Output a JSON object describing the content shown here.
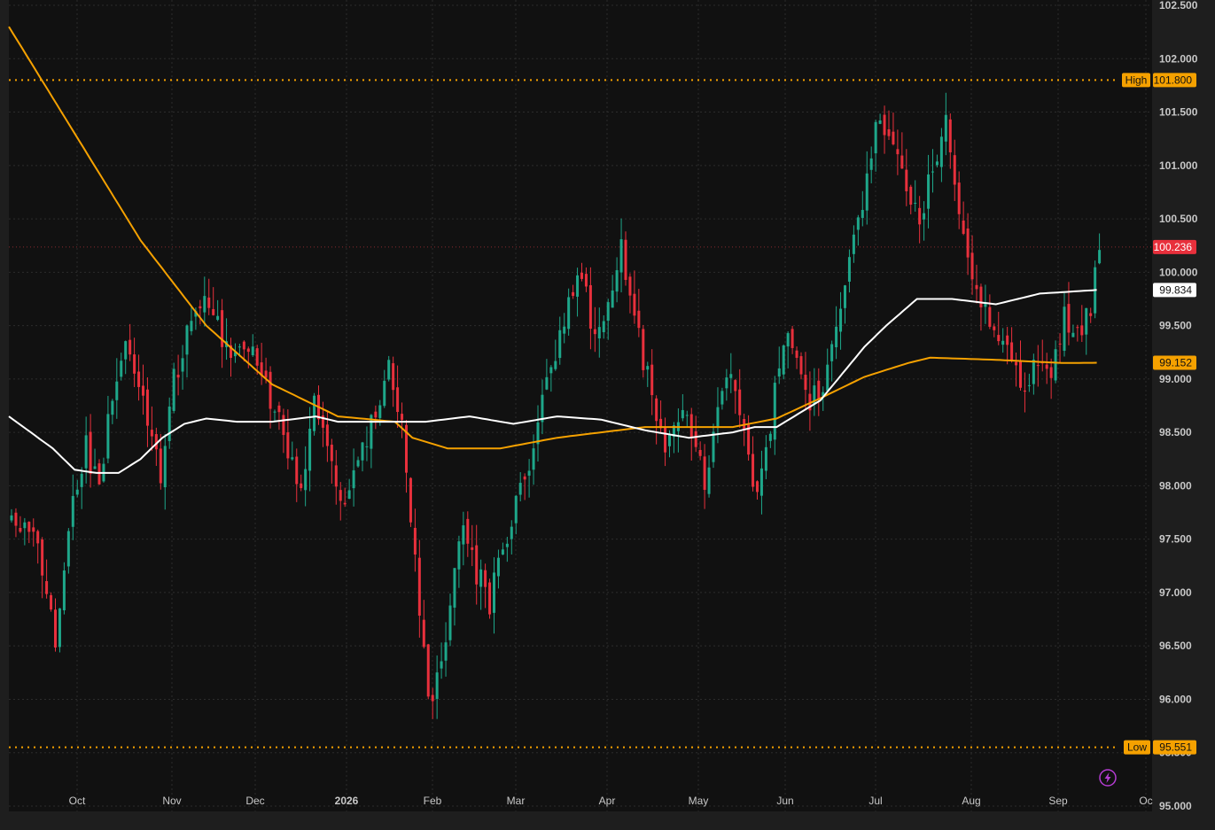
{
  "chart_data": {
    "type": "candlestick",
    "y_axis": {
      "min": 94.95,
      "max": 102.55,
      "ticks": [
        "95.000",
        "95.500",
        "96.000",
        "96.500",
        "97.000",
        "97.500",
        "98.000",
        "98.500",
        "99.000",
        "99.500",
        "100.000",
        "100.500",
        "101.000",
        "101.500",
        "102.000",
        "102.500"
      ]
    },
    "x_axis": {
      "labels": [
        {
          "text": "Oct",
          "bold": false
        },
        {
          "text": "Nov",
          "bold": false
        },
        {
          "text": "Dec",
          "bold": false
        },
        {
          "text": "2026",
          "bold": true
        },
        {
          "text": "Feb",
          "bold": false
        },
        {
          "text": "Mar",
          "bold": false
        },
        {
          "text": "Apr",
          "bold": false
        },
        {
          "text": "May",
          "bold": false
        },
        {
          "text": "Jun",
          "bold": false
        },
        {
          "text": "Jul",
          "bold": false
        },
        {
          "text": "Aug",
          "bold": false
        },
        {
          "text": "Sep",
          "bold": false
        },
        {
          "text": "Oc",
          "bold": false
        }
      ]
    },
    "high": {
      "label": "High",
      "value": "101.800",
      "price": 101.8
    },
    "low": {
      "label": "Low",
      "value": "95.551",
      "price": 95.551
    },
    "last_price": {
      "value": "100.236",
      "price": 100.236,
      "color": "#e8303c"
    },
    "ma_white": {
      "value": "99.834",
      "price": 99.834,
      "color": "#ffffff"
    },
    "ma_orange": {
      "value": "99.152",
      "price": 99.152,
      "color": "#f5a100"
    },
    "up_color": "#1ea78a",
    "down_color": "#e8303c",
    "close_path": [
      [
        0,
        97.6
      ],
      [
        6,
        97.5
      ],
      [
        10,
        96.6
      ],
      [
        14,
        97.8
      ],
      [
        17,
        98.4
      ],
      [
        20,
        97.9
      ],
      [
        23,
        98.9
      ],
      [
        26,
        99.3
      ],
      [
        30,
        98.8
      ],
      [
        34,
        98.1
      ],
      [
        37,
        99.0
      ],
      [
        40,
        99.4
      ],
      [
        44,
        99.8
      ],
      [
        47,
        99.5
      ],
      [
        50,
        99.1
      ],
      [
        54,
        99.3
      ],
      [
        58,
        98.9
      ],
      [
        62,
        98.5
      ],
      [
        66,
        98.0
      ],
      [
        69,
        98.8
      ],
      [
        72,
        98.4
      ],
      [
        76,
        97.8
      ],
      [
        80,
        98.3
      ],
      [
        84,
        98.8
      ],
      [
        86,
        99.2
      ],
      [
        89,
        98.6
      ],
      [
        92,
        97.3
      ],
      [
        95,
        96.0
      ],
      [
        98,
        96.3
      ],
      [
        100,
        97.0
      ],
      [
        103,
        97.7
      ],
      [
        106,
        97.2
      ],
      [
        109,
        96.9
      ],
      [
        112,
        97.4
      ],
      [
        115,
        97.8
      ],
      [
        118,
        98.2
      ],
      [
        121,
        98.8
      ],
      [
        124,
        99.2
      ],
      [
        127,
        99.7
      ],
      [
        130,
        100.0
      ],
      [
        133,
        99.3
      ],
      [
        136,
        99.6
      ],
      [
        139,
        100.2
      ],
      [
        142,
        99.6
      ],
      [
        146,
        98.8
      ],
      [
        149,
        98.3
      ],
      [
        152,
        98.7
      ],
      [
        155,
        98.5
      ],
      [
        158,
        98.0
      ],
      [
        161,
        98.8
      ],
      [
        164,
        99.1
      ],
      [
        167,
        98.5
      ],
      [
        170,
        97.9
      ],
      [
        173,
        98.6
      ],
      [
        176,
        99.4
      ],
      [
        179,
        99.3
      ],
      [
        182,
        98.8
      ],
      [
        185,
        98.9
      ],
      [
        188,
        99.5
      ],
      [
        191,
        100.2
      ],
      [
        194,
        100.7
      ],
      [
        197,
        101.4
      ],
      [
        200,
        101.2
      ],
      [
        204,
        100.8
      ],
      [
        207,
        100.5
      ],
      [
        210,
        101.0
      ],
      [
        213,
        101.4
      ],
      [
        216,
        100.6
      ],
      [
        219,
        99.9
      ],
      [
        222,
        99.7
      ],
      [
        225,
        99.4
      ],
      [
        228,
        99.2
      ],
      [
        231,
        98.9
      ],
      [
        234,
        99.2
      ],
      [
        237,
        99.0
      ],
      [
        240,
        99.6
      ],
      [
        243,
        99.4
      ],
      [
        246,
        99.7
      ],
      [
        248,
        100.24
      ]
    ],
    "ma_white_path": [
      [
        0,
        98.65
      ],
      [
        10,
        98.35
      ],
      [
        15,
        98.15
      ],
      [
        20,
        98.12
      ],
      [
        25,
        98.12
      ],
      [
        30,
        98.25
      ],
      [
        35,
        98.45
      ],
      [
        40,
        98.58
      ],
      [
        45,
        98.63
      ],
      [
        52,
        98.6
      ],
      [
        60,
        98.6
      ],
      [
        70,
        98.65
      ],
      [
        75,
        98.6
      ],
      [
        85,
        98.6
      ],
      [
        95,
        98.6
      ],
      [
        105,
        98.65
      ],
      [
        115,
        98.58
      ],
      [
        125,
        98.65
      ],
      [
        135,
        98.62
      ],
      [
        145,
        98.52
      ],
      [
        155,
        98.45
      ],
      [
        165,
        98.5
      ],
      [
        170,
        98.55
      ],
      [
        175,
        98.55
      ],
      [
        185,
        98.8
      ],
      [
        195,
        99.3
      ],
      [
        200,
        99.5
      ],
      [
        207,
        99.75
      ],
      [
        215,
        99.75
      ],
      [
        225,
        99.7
      ],
      [
        235,
        99.8
      ],
      [
        248,
        99.834
      ]
    ],
    "ma_orange_path": [
      [
        0,
        102.3
      ],
      [
        15,
        101.3
      ],
      [
        30,
        100.3
      ],
      [
        45,
        99.5
      ],
      [
        60,
        98.95
      ],
      [
        75,
        98.65
      ],
      [
        88,
        98.6
      ],
      [
        92,
        98.45
      ],
      [
        100,
        98.35
      ],
      [
        112,
        98.35
      ],
      [
        125,
        98.45
      ],
      [
        145,
        98.55
      ],
      [
        155,
        98.55
      ],
      [
        165,
        98.55
      ],
      [
        175,
        98.63
      ],
      [
        185,
        98.82
      ],
      [
        195,
        99.02
      ],
      [
        205,
        99.15
      ],
      [
        210,
        99.2
      ],
      [
        225,
        99.18
      ],
      [
        240,
        99.15
      ],
      [
        248,
        99.152
      ]
    ]
  }
}
